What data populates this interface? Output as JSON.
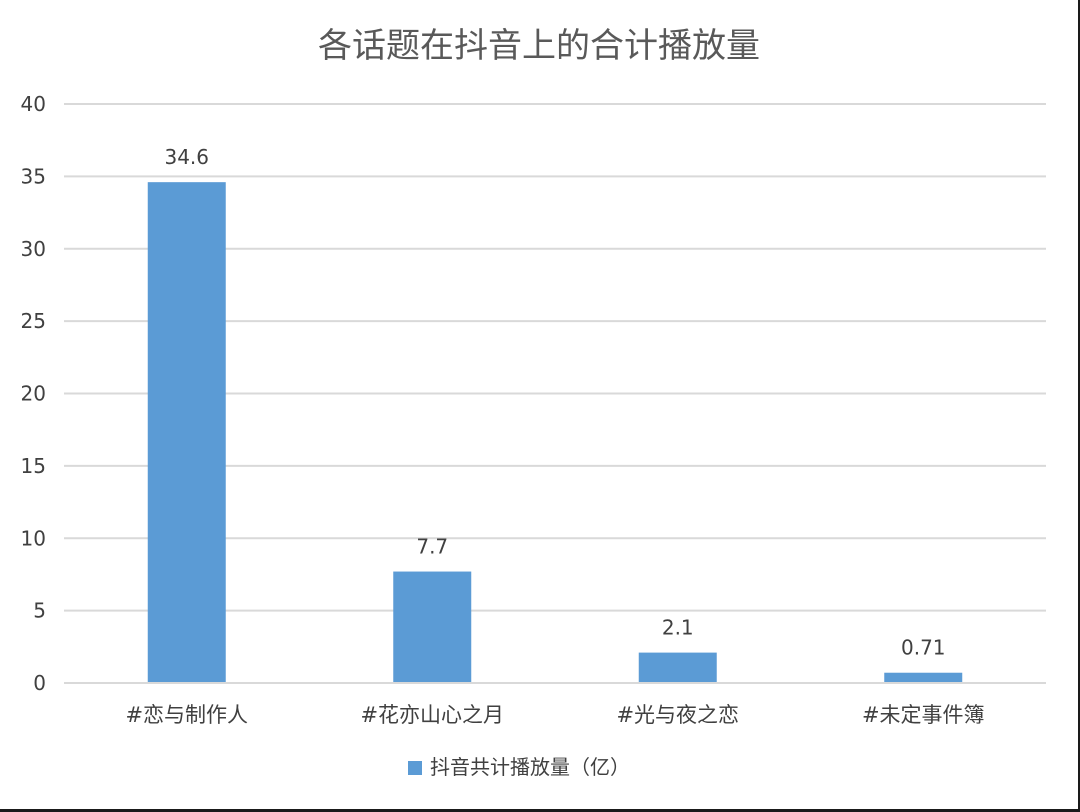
{
  "chart_data": {
    "type": "bar",
    "title": "各话题在抖音上的合计播放量",
    "categories": [
      "#恋与制作人",
      "#花亦山心之月",
      "#光与夜之恋",
      "#未定事件簿"
    ],
    "series": [
      {
        "name": "抖音共计播放量（亿）",
        "values": [
          34.6,
          7.7,
          2.1,
          0.71
        ],
        "data_labels": [
          "34.6",
          "7.7",
          "2.1",
          "0.71"
        ],
        "color": "#5b9bd5"
      }
    ],
    "ylim": [
      0,
      40
    ],
    "yticks": [
      0,
      5,
      10,
      15,
      20,
      25,
      30,
      35,
      40
    ],
    "grid": true,
    "legend_position": "bottom",
    "colors": {
      "bar": "#5b9bd5",
      "grid": "#d9d9d9",
      "text": "#404040",
      "title": "#595959"
    }
  }
}
